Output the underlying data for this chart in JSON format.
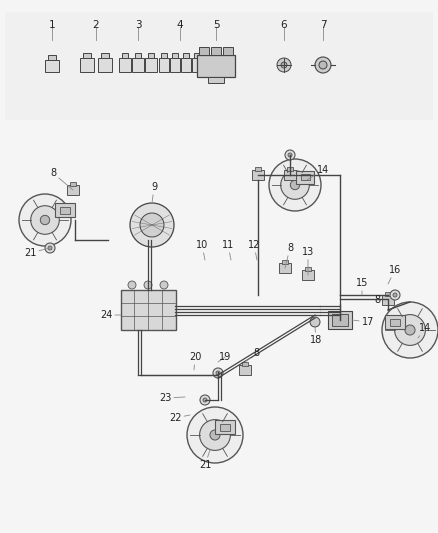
{
  "bg_color": "#f5f5f5",
  "line_color": "#444444",
  "label_color": "#222222",
  "fig_width": 4.38,
  "fig_height": 5.33,
  "dpi": 100
}
